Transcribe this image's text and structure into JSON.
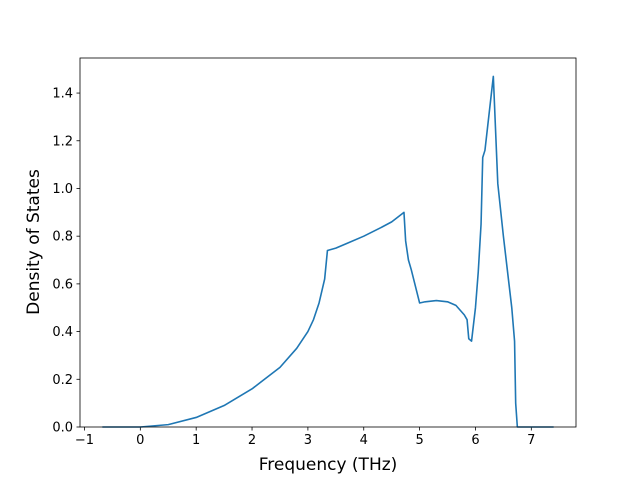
{
  "chart_data": {
    "type": "line",
    "xlabel": "Frequency (THz)",
    "ylabel": "Density of States",
    "x": [
      -0.68,
      0,
      0.5,
      1,
      1.5,
      2,
      2.5,
      2.8,
      3.0,
      3.1,
      3.2,
      3.3,
      3.35,
      3.5,
      3.7,
      4.0,
      4.3,
      4.5,
      4.72,
      4.75,
      4.8,
      4.85,
      5.0,
      5.1,
      5.3,
      5.5,
      5.65,
      5.8,
      5.85,
      5.88,
      5.93,
      6.0,
      6.05,
      6.1,
      6.13,
      6.17,
      6.32,
      6.35,
      6.4,
      6.5,
      6.6,
      6.65,
      6.7,
      6.72,
      6.75,
      7.4
    ],
    "series": [
      {
        "color": "#1f77b4",
        "values": [
          0,
          0,
          0.01,
          0.04,
          0.09,
          0.16,
          0.25,
          0.33,
          0.4,
          0.45,
          0.52,
          0.62,
          0.74,
          0.75,
          0.77,
          0.8,
          0.835,
          0.86,
          0.9,
          0.78,
          0.7,
          0.66,
          0.52,
          0.525,
          0.53,
          0.525,
          0.51,
          0.47,
          0.45,
          0.37,
          0.36,
          0.5,
          0.65,
          0.85,
          1.13,
          1.16,
          1.47,
          1.3,
          1.02,
          0.8,
          0.6,
          0.5,
          0.36,
          0.1,
          0,
          0
        ]
      }
    ],
    "xlim": [
      -1.08,
      7.8
    ],
    "ylim": [
      0,
      1.547
    ],
    "xticks": [
      {
        "value": -1,
        "label": "−1"
      },
      0,
      1,
      2,
      3,
      4,
      5,
      6,
      7
    ],
    "yticks": [
      {
        "value": 0,
        "label": "0.0"
      },
      {
        "value": 0.2,
        "label": "0.2"
      },
      {
        "value": 0.4,
        "label": "0.4"
      },
      {
        "value": 0.6,
        "label": "0.6"
      },
      {
        "value": 0.8,
        "label": "0.8"
      },
      {
        "value": 1.0,
        "label": "1.0"
      },
      {
        "value": 1.2,
        "label": "1.2"
      },
      {
        "value": 1.4,
        "label": "1.4"
      }
    ],
    "grid": false
  }
}
